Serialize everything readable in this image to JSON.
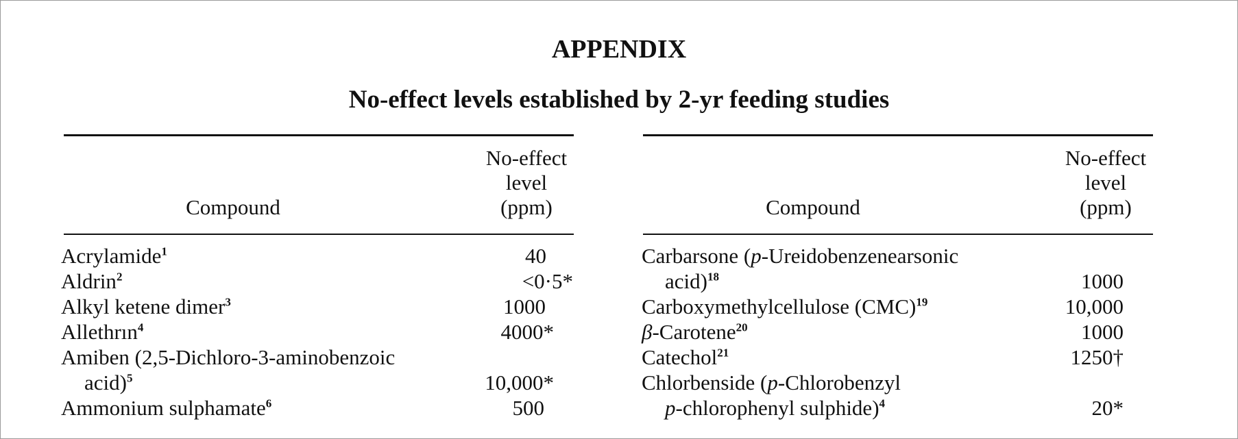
{
  "header": {
    "title": "APPENDIX",
    "subtitle": "No-effect levels established by 2-yr feeding studies"
  },
  "table": {
    "col_compound": "Compound",
    "col_level": [
      "No-effect",
      "level",
      "(ppm)"
    ]
  },
  "left_rows": [
    {
      "name": "Acrylamide",
      "ref": "1",
      "value": "40"
    },
    {
      "name": "Aldrin",
      "ref": "2",
      "value": "<0·5*"
    },
    {
      "name": "Alkyl ketene dimer",
      "ref": "3",
      "value": "1000"
    },
    {
      "name": "Allethrın",
      "ref": "4",
      "value": "4000*"
    },
    {
      "name_line1": "Amiben (2,5-Dichloro-3-aminobenzoic",
      "name_line2": "acid)",
      "ref": "5",
      "value": "10,000*"
    },
    {
      "name": "Ammonium sulphamate",
      "ref": "6",
      "value": "500"
    }
  ],
  "right_rows": [
    {
      "name_line1_pre": "Carbarsone (",
      "name_line1_italic": "p",
      "name_line1_post": "-Ureidobenzenearsonic",
      "name_line2": "acid)",
      "ref": "18",
      "value": "1000"
    },
    {
      "name": "Carboxymethylcellulose (CMC)",
      "ref": "19",
      "value": "10,000"
    },
    {
      "name_italic": "β",
      "name": "-Carotene",
      "ref": "20",
      "value": "1000"
    },
    {
      "name": "Catechol",
      "ref": "21",
      "value": "1250†"
    },
    {
      "name_line1_pre": "Chlorbenside (",
      "name_line1_italic": "p",
      "name_line1_post": "-Chlorobenzyl",
      "name_line2_italic": "p",
      "name_line2": "-chlorophenyl sulphide)",
      "ref": "4",
      "value": "20*"
    }
  ]
}
